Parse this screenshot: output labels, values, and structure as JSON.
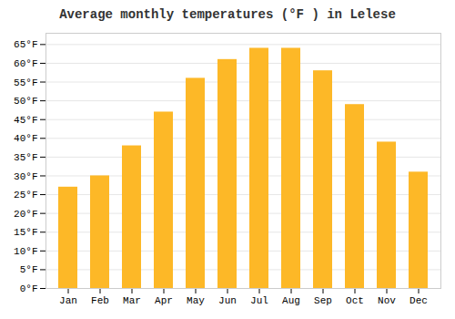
{
  "chart_data": {
    "type": "bar",
    "title": "Average monthly temperatures (°F ) in Lelese",
    "categories": [
      "Jan",
      "Feb",
      "Mar",
      "Apr",
      "May",
      "Jun",
      "Jul",
      "Aug",
      "Sep",
      "Oct",
      "Nov",
      "Dec"
    ],
    "values": [
      27,
      30,
      38,
      47,
      56,
      61,
      64,
      64,
      58,
      49,
      39,
      31
    ],
    "color": "#FDB827",
    "ylim": [
      0,
      68
    ],
    "yticks": [
      {
        "value": 0,
        "label": "0°F"
      },
      {
        "value": 5,
        "label": "5°F"
      },
      {
        "value": 10,
        "label": "10°F"
      },
      {
        "value": 15,
        "label": "15°F"
      },
      {
        "value": 20,
        "label": "20°F"
      },
      {
        "value": 25,
        "label": "25°F"
      },
      {
        "value": 30,
        "label": "30°F"
      },
      {
        "value": 35,
        "label": "35°F"
      },
      {
        "value": 40,
        "label": "40°F"
      },
      {
        "value": 45,
        "label": "45°F"
      },
      {
        "value": 50,
        "label": "50°F"
      },
      {
        "value": 55,
        "label": "55°F"
      },
      {
        "value": 60,
        "label": "60°F"
      },
      {
        "value": 65,
        "label": "65°F"
      }
    ],
    "grid": true
  }
}
